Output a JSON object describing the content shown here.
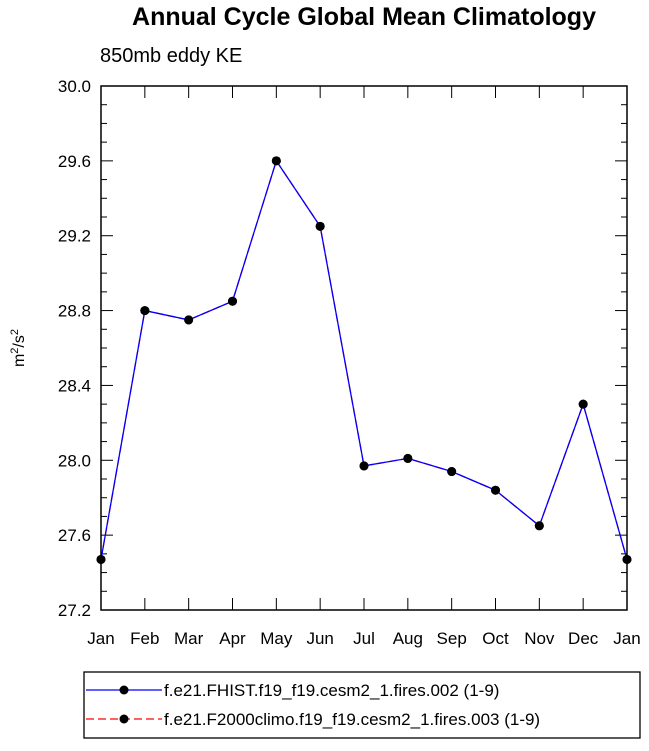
{
  "chart_data": {
    "type": "line",
    "title": "Annual Cycle Global Mean Climatology",
    "subtitle": "850mb eddy KE",
    "xlabel": "",
    "ylabel": "m2/s2",
    "ylabel_parts": {
      "base1": "m",
      "sup1": "2",
      "slash": "/s",
      "sup2": "2"
    },
    "categories": [
      "Jan",
      "Feb",
      "Mar",
      "Apr",
      "May",
      "Jun",
      "Jul",
      "Aug",
      "Sep",
      "Oct",
      "Nov",
      "Dec",
      "Jan"
    ],
    "ylim": [
      27.2,
      30.0
    ],
    "yticks": [
      27.2,
      27.6,
      28.0,
      28.4,
      28.8,
      29.2,
      29.6,
      30.0
    ],
    "ytick_labels": [
      "27.2",
      "27.6",
      "28.0",
      "28.4",
      "28.8",
      "29.2",
      "29.6",
      "30.0"
    ],
    "series": [
      {
        "name": "f.e21.FHIST.f19_f19.cesm2_1.fires.002 (1-9)",
        "color": "#0000ff",
        "dash": "solid",
        "values": [
          27.47,
          28.8,
          28.75,
          28.85,
          29.6,
          29.25,
          27.97,
          28.01,
          27.94,
          27.84,
          27.65,
          28.3,
          27.47
        ]
      },
      {
        "name": "f.e21.F2000climo.f19_f19.cesm2_1.fires.003 (1-9)",
        "color": "#ff0000",
        "dash": "dashed",
        "values": [
          27.47,
          28.8,
          28.75,
          28.85,
          29.6,
          29.25,
          27.97,
          28.01,
          27.94,
          27.84,
          27.65,
          28.3,
          27.47
        ]
      }
    ],
    "legend_position": "bottom",
    "grid": false
  }
}
